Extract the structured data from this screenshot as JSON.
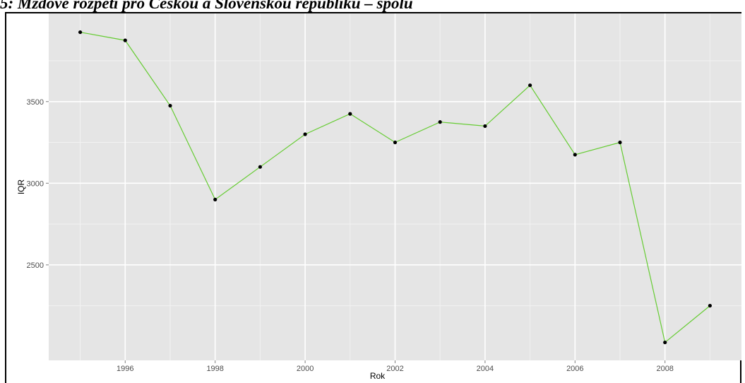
{
  "caption": "5: Mzdové rozpětí pro Českou a Slovenskou republiku – spolu",
  "colors": {
    "panel": "#e5e5e5",
    "grid_major": "#ffffff",
    "grid_minor": "#f2f2f2",
    "line": "#66cc33",
    "point": "#000000"
  },
  "chart_data": {
    "type": "line",
    "title": "",
    "xlabel": "Rok",
    "ylabel": "IQR",
    "x": [
      1995,
      1996,
      1997,
      1998,
      1999,
      2000,
      2001,
      2002,
      2003,
      2004,
      2005,
      2006,
      2007,
      2008,
      2009
    ],
    "values": [
      3925,
      3875,
      3475,
      2900,
      3100,
      3300,
      3425,
      3250,
      3375,
      3350,
      3600,
      3175,
      3250,
      2025,
      2250
    ],
    "x_ticks": [
      1996,
      1998,
      2000,
      2002,
      2004,
      2006,
      2008
    ],
    "x_tick_labels": [
      "1996",
      "1998",
      "2000",
      "2002",
      "2004",
      "2006",
      "2008"
    ],
    "y_ticks": [
      2500,
      3000,
      3500
    ],
    "y_tick_labels": [
      "2500",
      "3000",
      "3500"
    ],
    "xlim": [
      1994.3,
      2009.7
    ],
    "ylim": [
      1915,
      4040
    ],
    "grid": true,
    "legend": "none"
  }
}
